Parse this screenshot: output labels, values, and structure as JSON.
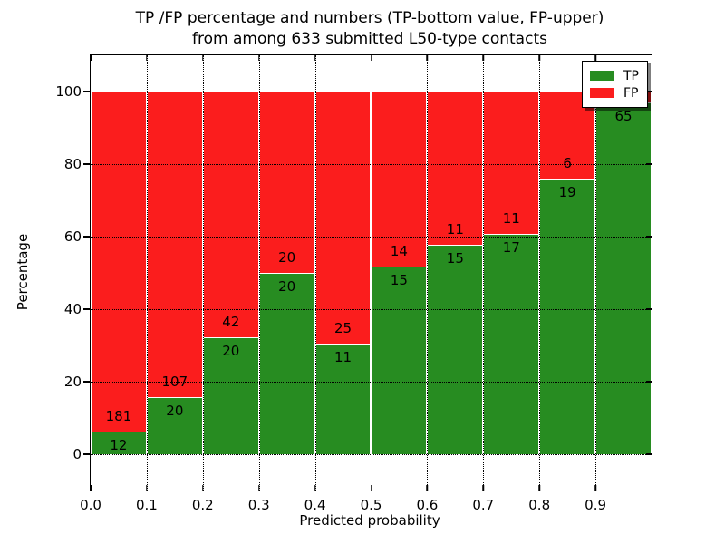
{
  "figure": {
    "title_line1": "TP /FP percentage and numbers (TP-bottom value, FP-upper)",
    "title_line2": "from among 633 submitted L50-type contacts"
  },
  "chart_data": {
    "type": "bar",
    "stacked": true,
    "normalized_to_percent": true,
    "title": "TP /FP percentage and numbers (TP-bottom value, FP-upper) from among 633 submitted L50-type contacts",
    "xlabel": "Predicted probability",
    "ylabel": "Percentage",
    "xlim": [
      0.0,
      1.0
    ],
    "ylim": [
      -10,
      110
    ],
    "grid": "dotted",
    "total_contacts": 633,
    "bins": [
      "0.0-0.1",
      "0.1-0.2",
      "0.2-0.3",
      "0.3-0.4",
      "0.4-0.5",
      "0.5-0.6",
      "0.6-0.7",
      "0.7-0.8",
      "0.8-0.9",
      "0.9-1.0"
    ],
    "x_tick_labels": [
      "0.0",
      "0.1",
      "0.2",
      "0.3",
      "0.4",
      "0.5",
      "0.6",
      "0.7",
      "0.8",
      "0.9"
    ],
    "y_tick_values": [
      0,
      20,
      40,
      60,
      80,
      100
    ],
    "series": [
      {
        "name": "TP",
        "color": "#278c21",
        "counts": [
          12,
          20,
          20,
          20,
          11,
          15,
          15,
          17,
          19,
          65
        ],
        "labels": [
          "12",
          "20",
          "20",
          "20",
          "11",
          "15",
          "15",
          "17",
          "19",
          "65"
        ]
      },
      {
        "name": "FP",
        "color": "#fb1d1d",
        "counts": [
          181,
          107,
          42,
          20,
          25,
          14,
          11,
          11,
          6,
          2
        ],
        "labels": [
          "181",
          "107",
          "42",
          "20",
          "25",
          "14",
          "11",
          "11",
          "6",
          ""
        ]
      }
    ],
    "tp_percent": [
      6.2,
      15.7,
      32.3,
      50.0,
      30.6,
      51.7,
      57.7,
      60.7,
      76.0,
      97.0
    ],
    "legend": {
      "position": "upper-right",
      "entries": [
        "TP",
        "FP"
      ]
    }
  }
}
